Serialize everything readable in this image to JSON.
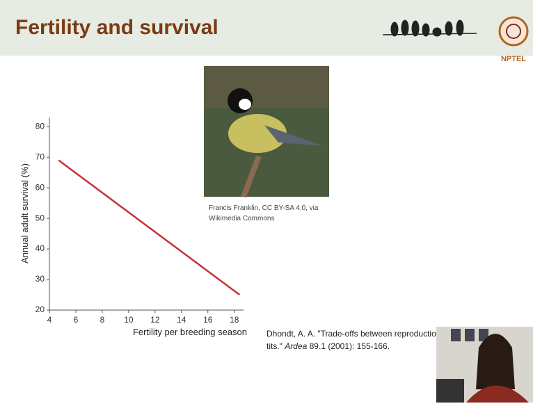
{
  "header": {
    "title": "Fertility and survival",
    "logo": "NPTEL"
  },
  "image_credit": [
    "Francis Franklin, CC BY-SA 4.0, via",
    "Wikimedia Commons"
  ],
  "citation": {
    "line1": "Dhondt, A. A. \"Trade-offs between reproduction and s",
    "line2_start": "tits.\" ",
    "journal": "Ardea",
    "line2_end": " 89.1 (2001): 155-166."
  },
  "chart_data": {
    "type": "line",
    "x_label": "Fertility per breeding season",
    "y_label": "Annual adult survival (%)",
    "x": [
      4.7,
      18.4
    ],
    "values": [
      69,
      25
    ],
    "color": "#c0333a",
    "xlim": [
      4,
      18.7
    ],
    "ylim": [
      20,
      83
    ],
    "xticks": [
      4,
      6,
      8,
      10,
      12,
      14,
      16,
      18
    ],
    "yticks": [
      20,
      30,
      40,
      50,
      60,
      70,
      80
    ]
  }
}
